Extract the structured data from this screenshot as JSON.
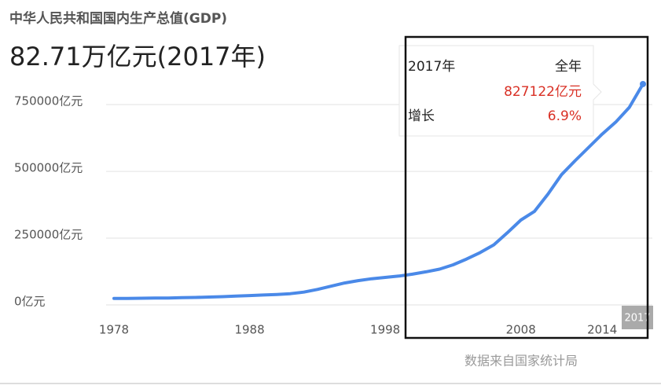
{
  "chart_data": {
    "type": "line",
    "title": "中华人民共和国国内生产总值(GDP)",
    "headline": "82.71万亿元(2017年)",
    "source": "数据来自国家统计局",
    "x": [
      1978,
      1979,
      1980,
      1981,
      1982,
      1983,
      1984,
      1985,
      1986,
      1987,
      1988,
      1989,
      1990,
      1991,
      1992,
      1993,
      1994,
      1995,
      1996,
      1997,
      1998,
      1999,
      2000,
      2001,
      2002,
      2003,
      2004,
      2005,
      2006,
      2007,
      2008,
      2009,
      2010,
      2011,
      2012,
      2013,
      2014,
      2015,
      2016,
      2017
    ],
    "values": [
      24000,
      24500,
      25000,
      25500,
      26000,
      27000,
      28000,
      29500,
      31000,
      33000,
      35000,
      37000,
      39000,
      42000,
      48000,
      58000,
      70000,
      82000,
      91000,
      98000,
      103000,
      108000,
      115000,
      124000,
      134000,
      150000,
      172000,
      196000,
      225000,
      270000,
      318000,
      350000,
      415000,
      488000,
      540000,
      590000,
      640000,
      685000,
      740000,
      827122
    ],
    "color": "#4a89e8",
    "xlim": [
      1978,
      2017
    ],
    "xticks": [
      1978,
      1988,
      1998,
      2008,
      2014
    ],
    "ylim": [
      0,
      830000
    ],
    "yticks": [
      {
        "value": 0,
        "label": "0亿元"
      },
      {
        "value": 250000,
        "label": "250000亿元"
      },
      {
        "value": 500000,
        "label": "500000亿元"
      },
      {
        "value": 750000,
        "label": "750000亿元"
      }
    ],
    "grid": true,
    "tooltip": {
      "year": "2017年",
      "period": "全年",
      "value_label": "827122亿元",
      "growth_label": "增长",
      "growth": "6.9%"
    }
  }
}
